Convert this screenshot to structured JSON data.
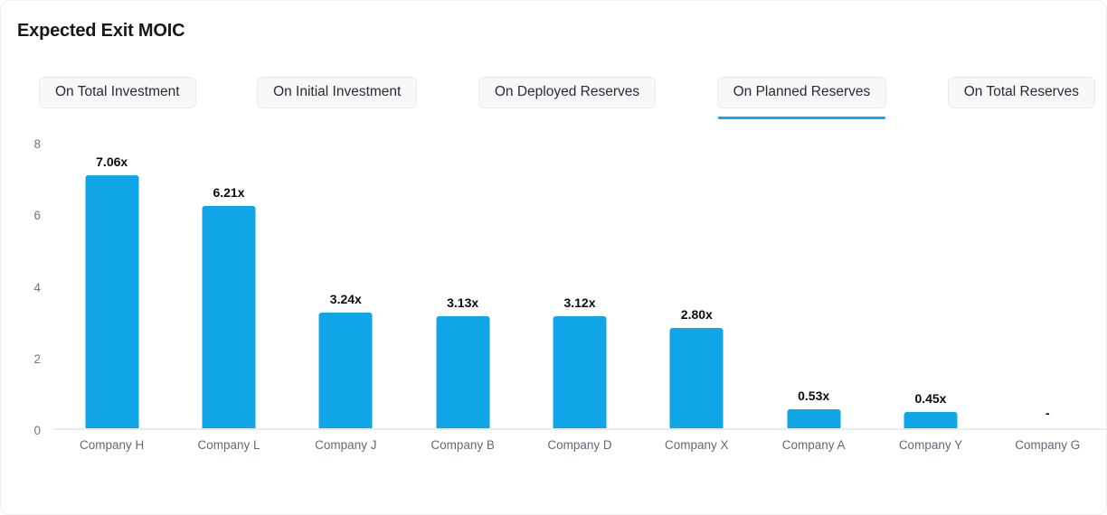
{
  "header": {
    "title": "Expected Exit MOIC"
  },
  "tabs": {
    "items": [
      {
        "label": "On Total Investment",
        "active": false
      },
      {
        "label": "On Initial Investment",
        "active": false
      },
      {
        "label": "On Deployed Reserves",
        "active": false
      },
      {
        "label": "On Planned Reserves",
        "active": true
      },
      {
        "label": "On Total Reserves",
        "active": false
      }
    ]
  },
  "chart_data": {
    "type": "bar",
    "title": "Expected Exit MOIC",
    "categories": [
      "Company H",
      "Company L",
      "Company J",
      "Company B",
      "Company D",
      "Company X",
      "Company A",
      "Company Y",
      "Company G"
    ],
    "values": [
      7.06,
      6.21,
      3.24,
      3.13,
      3.12,
      2.8,
      0.53,
      0.45,
      null
    ],
    "value_labels": [
      "7.06x",
      "6.21x",
      "3.24x",
      "3.13x",
      "3.12x",
      "2.80x",
      "0.53x",
      "0.45x",
      "-"
    ],
    "xlabel": "",
    "ylabel": "",
    "ylim": [
      0,
      8
    ],
    "yticks": [
      0,
      2,
      4,
      6,
      8
    ],
    "grid": false,
    "legend_position": "none"
  },
  "colors": {
    "bar": "#10a5e6",
    "active_tab_underline": "#16a7e8",
    "axis_line": "#e8ecf0",
    "axis_text": "#6b7884",
    "category_text": "#5f6b77",
    "value_text": "#0a0c0e"
  }
}
